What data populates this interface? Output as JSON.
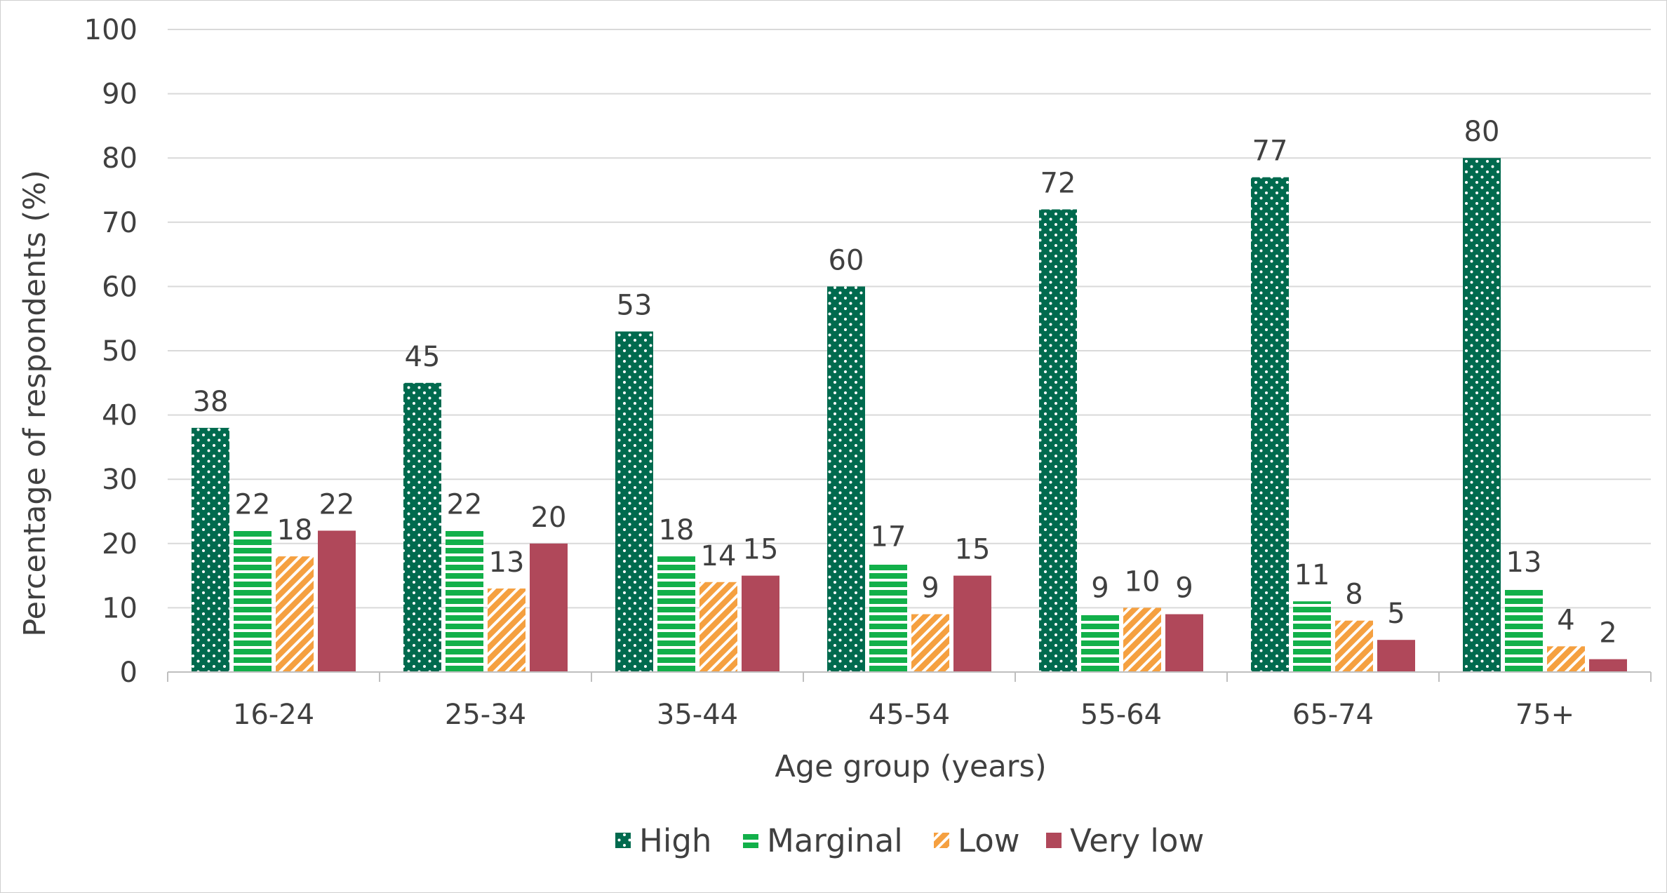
{
  "chart_data": {
    "type": "bar",
    "title": "",
    "xlabel": "Age group (years)",
    "ylabel": "Percentage of respondents (%)",
    "ylim": [
      0,
      100
    ],
    "ytick_step": 10,
    "grid": true,
    "legend_position": "bottom",
    "categories": [
      "16-24",
      "25-34",
      "35-44",
      "45-54",
      "55-64",
      "65-74",
      "75+"
    ],
    "series": [
      {
        "name": "High",
        "values": [
          38,
          45,
          53,
          60,
          72,
          77,
          80
        ],
        "color": "#006a4e",
        "pattern": "dots"
      },
      {
        "name": "Marginal",
        "values": [
          22,
          22,
          18,
          17,
          9,
          11,
          13
        ],
        "color": "#12b04a",
        "pattern": "horizontal-stripes"
      },
      {
        "name": "Low",
        "values": [
          18,
          13,
          14,
          9,
          10,
          8,
          4
        ],
        "color": "#f5a040",
        "pattern": "diagonal-stripes"
      },
      {
        "name": "Very low",
        "values": [
          22,
          20,
          15,
          15,
          9,
          5,
          2
        ],
        "color": "#b0485a",
        "pattern": "solid"
      }
    ]
  }
}
